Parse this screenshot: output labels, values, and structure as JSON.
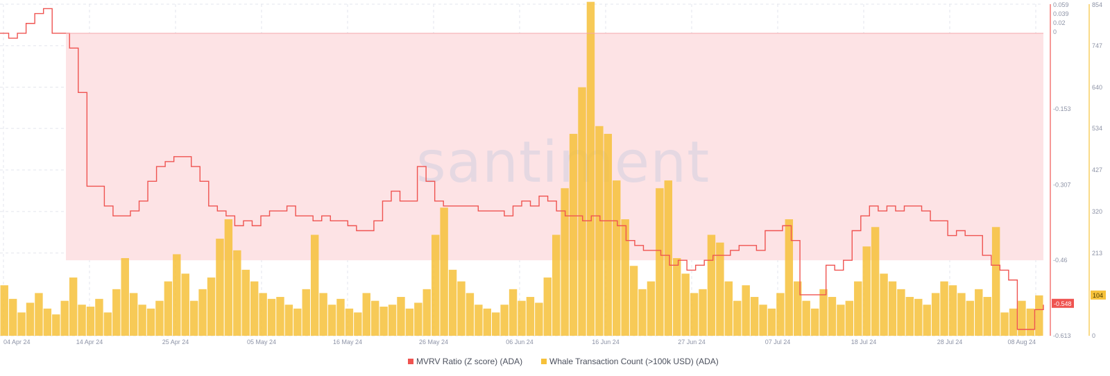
{
  "watermark": "santiment",
  "colors": {
    "mvrv": "#ef5350",
    "whale": "#f6c13a",
    "band": "#fde3e5",
    "grid": "#e3e5ec",
    "tick": "#8d93a6"
  },
  "legend": [
    {
      "label": "MVRV Ratio (Z score) (ADA)",
      "color": "#ef5350"
    },
    {
      "label": "Whale Transaction Count (>100k USD) (ADA)",
      "color": "#f6c13a"
    }
  ],
  "chart_data": {
    "type": "line",
    "x_tick_labels": [
      "04 Apr 24",
      "14 Apr 24",
      "25 Apr 24",
      "05 May 24",
      "16 May 24",
      "26 May 24",
      "06 Jun 24",
      "16 Jun 24",
      "27 Jun 24",
      "07 Jul 24",
      "18 Jul 24",
      "28 Jul 24",
      "08 Aug 24"
    ],
    "mvrv_axis": {
      "ticks": [
        "0.059",
        "0.039",
        "0.02",
        "0",
        "-0.153",
        "-0.307",
        "-0.46",
        "-0.613"
      ],
      "range": [
        -0.613,
        0.059
      ],
      "current_label": "-0.548"
    },
    "whale_axis": {
      "ticks": [
        "854",
        "747",
        "640",
        "534",
        "427",
        "320",
        "213",
        "0"
      ],
      "range": [
        0,
        854
      ],
      "current_label": "104"
    },
    "series": [
      {
        "name": "MVRV Ratio (Z score) (ADA)",
        "axis": "right-inner",
        "values": [
          0.0,
          -0.01,
          0.0,
          0.02,
          0.04,
          0.05,
          0.0,
          0.0,
          -0.03,
          -0.12,
          -0.31,
          -0.31,
          -0.35,
          -0.37,
          -0.37,
          -0.36,
          -0.34,
          -0.3,
          -0.27,
          -0.26,
          -0.25,
          -0.25,
          -0.27,
          -0.3,
          -0.35,
          -0.36,
          -0.37,
          -0.39,
          -0.38,
          -0.39,
          -0.37,
          -0.36,
          -0.36,
          -0.35,
          -0.37,
          -0.37,
          -0.38,
          -0.37,
          -0.38,
          -0.38,
          -0.39,
          -0.4,
          -0.4,
          -0.38,
          -0.34,
          -0.32,
          -0.34,
          -0.34,
          -0.27,
          -0.3,
          -0.34,
          -0.35,
          -0.35,
          -0.35,
          -0.35,
          -0.36,
          -0.36,
          -0.36,
          -0.37,
          -0.35,
          -0.34,
          -0.35,
          -0.33,
          -0.34,
          -0.36,
          -0.37,
          -0.37,
          -0.38,
          -0.37,
          -0.38,
          -0.38,
          -0.39,
          -0.42,
          -0.43,
          -0.44,
          -0.44,
          -0.45,
          -0.47,
          -0.46,
          -0.48,
          -0.47,
          -0.46,
          -0.45,
          -0.45,
          -0.44,
          -0.43,
          -0.43,
          -0.44,
          -0.4,
          -0.4,
          -0.39,
          -0.42,
          -0.53,
          -0.53,
          -0.53,
          -0.47,
          -0.48,
          -0.46,
          -0.4,
          -0.37,
          -0.35,
          -0.36,
          -0.35,
          -0.36,
          -0.35,
          -0.35,
          -0.36,
          -0.38,
          -0.38,
          -0.41,
          -0.4,
          -0.41,
          -0.41,
          -0.45,
          -0.47,
          -0.48,
          -0.5,
          -0.6,
          -0.6,
          -0.56,
          -0.55
        ],
        "note": "normalized sampling across the date range, left to right"
      },
      {
        "name": "Whale Transaction Count (>100k USD) (ADA)",
        "axis": "right-outer",
        "type": "bar",
        "values": [
          130,
          95,
          60,
          85,
          110,
          70,
          55,
          90,
          150,
          80,
          75,
          95,
          60,
          120,
          200,
          110,
          80,
          70,
          90,
          140,
          210,
          160,
          90,
          120,
          150,
          250,
          300,
          220,
          170,
          140,
          110,
          95,
          100,
          80,
          70,
          120,
          260,
          110,
          80,
          95,
          70,
          60,
          110,
          90,
          75,
          80,
          100,
          70,
          85,
          120,
          260,
          330,
          170,
          140,
          110,
          80,
          70,
          60,
          80,
          120,
          90,
          100,
          85,
          150,
          260,
          380,
          520,
          640,
          860,
          540,
          520,
          400,
          300,
          180,
          120,
          140,
          380,
          400,
          200,
          160,
          110,
          120,
          260,
          240,
          140,
          90,
          130,
          100,
          80,
          70,
          110,
          300,
          140,
          90,
          70,
          120,
          100,
          80,
          90,
          140,
          230,
          280,
          160,
          140,
          120,
          100,
          95,
          80,
          110,
          140,
          130,
          110,
          90,
          120,
          100,
          280,
          60,
          70,
          90,
          70,
          104
        ],
        "note": "daily counts, normalized sampling across the date range"
      }
    ],
    "band": {
      "from": 0,
      "to": -0.46,
      "description": "shaded zone"
    },
    "grid": true,
    "legend_position": "bottom-center"
  }
}
